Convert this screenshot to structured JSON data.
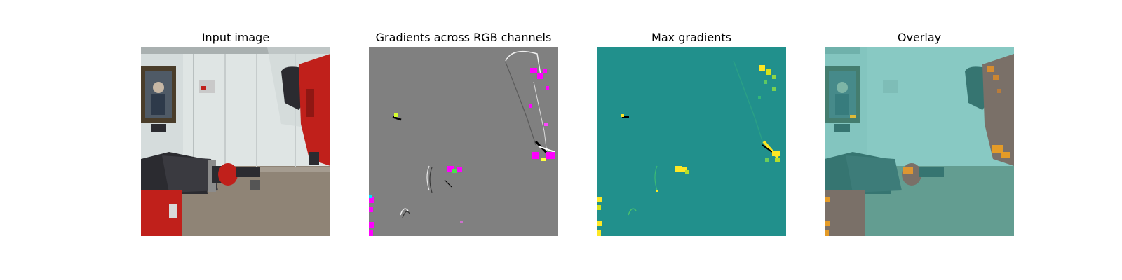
{
  "figure": {
    "panels": [
      {
        "title": "Input image"
      },
      {
        "title": "Gradients across RGB channels"
      },
      {
        "title": "Max gradients"
      },
      {
        "title": "Overlay"
      }
    ]
  },
  "colors": {
    "gradient_background": "#808080",
    "max_gradient_background": "#21908c",
    "overlay_tint": "#3fb3a8",
    "highlight_yellow": "#fde725",
    "highlight_magenta": "#ff00ff",
    "robot_red": "#c0201b",
    "robot_dark": "#2b2b30",
    "wall_white": "#d8dedd",
    "floor_tan": "#8f8476"
  }
}
